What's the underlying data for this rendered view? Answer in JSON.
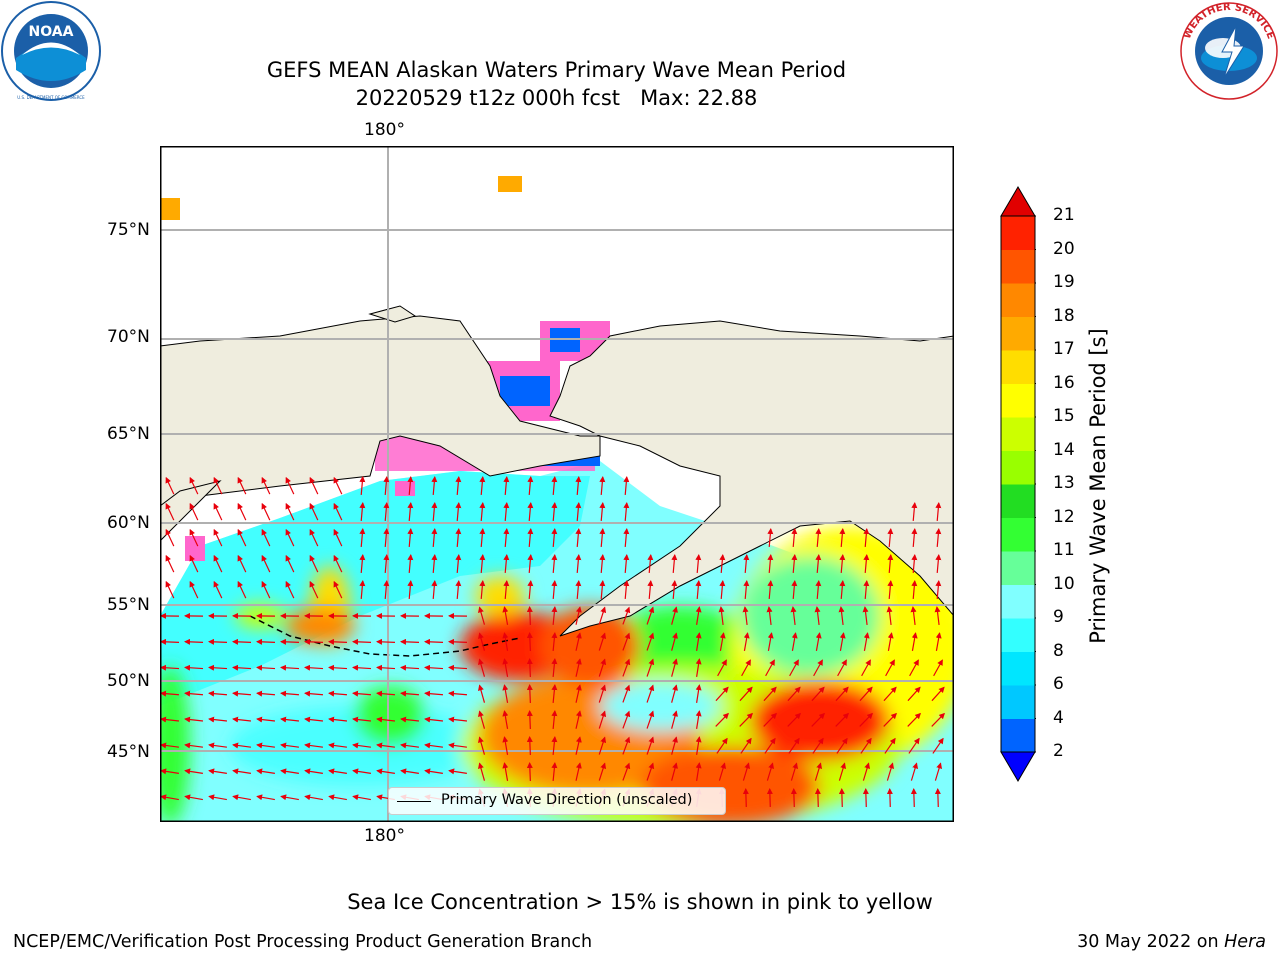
{
  "title": {
    "line1": "GEFS MEAN Alaskan Waters Primary Wave Mean Period",
    "line2": "20220529 t12z 000h fcst   Max: 22.88"
  },
  "logos": {
    "noaa": {
      "text": "NOAA",
      "ring_text": "NATIONAL OCEANIC AND ATMOSPHERIC ADMINISTRATION · U.S. DEPARTMENT OF COMMERCE",
      "color": "#1b5fa8"
    },
    "nws": {
      "ring_text": "NATIONAL WEATHER SERVICE",
      "color": "#d2232a"
    }
  },
  "map": {
    "lat_labels": [
      "75°N",
      "70°N",
      "65°N",
      "60°N",
      "55°N",
      "50°N",
      "45°N"
    ],
    "lon_label_top": "180°",
    "lon_label_bottom": "180°",
    "land_color": "#efedde",
    "arrow_color": "#e8000b",
    "legend_label": "Primary Wave Direction (unscaled)"
  },
  "colorbar": {
    "label": "Primary Wave Mean Period [s]",
    "ticks": [
      "2",
      "4",
      "6",
      "8",
      "9",
      "10",
      "11",
      "12",
      "13",
      "14",
      "15",
      "16",
      "17",
      "18",
      "19",
      "20",
      "21"
    ],
    "colors": [
      "#0000ff",
      "#0064ff",
      "#00c8ff",
      "#00e6ff",
      "#33ffff",
      "#80ffff",
      "#66ff99",
      "#33ff33",
      "#22dd22",
      "#99ff00",
      "#ccff00",
      "#ffff00",
      "#ffdd00",
      "#ffaa00",
      "#ff8800",
      "#ff5500",
      "#ff2200",
      "#e10000"
    ]
  },
  "footer": {
    "note": "Sea Ice Concentration > 15% is shown in pink to yellow",
    "left": "NCEP/EMC/Verification Post Processing Product Generation Branch",
    "right_prefix": "30 May 2022 on ",
    "right_italic": "Hera"
  }
}
